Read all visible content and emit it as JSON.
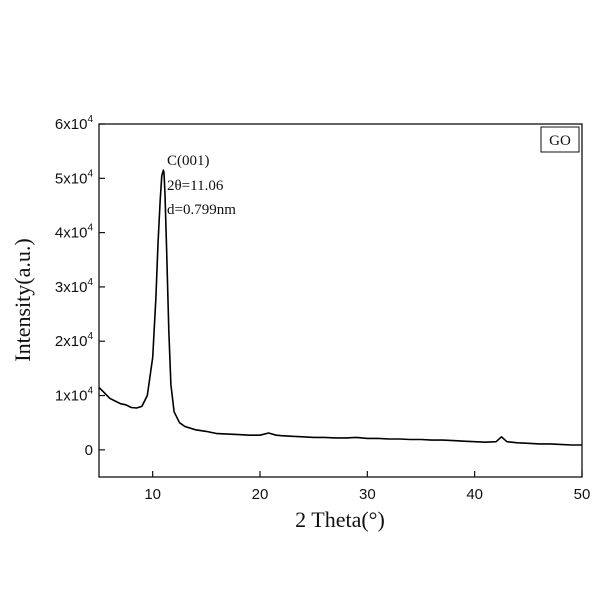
{
  "chart_data": {
    "type": "line",
    "xlabel": "2 Theta(°)",
    "ylabel": "Intensity(a.u.)",
    "xlim": [
      5,
      50
    ],
    "ylim": [
      -5000,
      60000
    ],
    "x_ticks": [
      10,
      20,
      30,
      40,
      50
    ],
    "y_ticks": [
      {
        "value": 0,
        "base": "0",
        "exp": ""
      },
      {
        "value": 10000,
        "base": "1x10",
        "exp": "4"
      },
      {
        "value": 20000,
        "base": "2x10",
        "exp": "4"
      },
      {
        "value": 30000,
        "base": "3x10",
        "exp": "4"
      },
      {
        "value": 40000,
        "base": "4x10",
        "exp": "4"
      },
      {
        "value": 50000,
        "base": "5x10",
        "exp": "4"
      },
      {
        "value": 60000,
        "base": "6x10",
        "exp": "4"
      }
    ],
    "legend": {
      "label": "GO",
      "position": "top-right"
    },
    "annotation": {
      "lines": [
        "C(001)",
        "2θ=11.06",
        "d=0.799nm"
      ],
      "anchor_x": 11.2,
      "anchor_y": 53000
    },
    "series": [
      {
        "color": "#000000",
        "x": [
          5.0,
          5.5,
          6.0,
          6.5,
          7.0,
          7.5,
          8.0,
          8.5,
          9.0,
          9.5,
          10.0,
          10.3,
          10.5,
          10.7,
          10.85,
          11.0,
          11.06,
          11.15,
          11.3,
          11.5,
          11.7,
          12.0,
          12.5,
          13.0,
          14.0,
          15.0,
          16.0,
          17.0,
          18.0,
          19.0,
          20.0,
          20.8,
          21.5,
          22.0,
          23.0,
          24.0,
          25.0,
          26.0,
          27.0,
          28.0,
          29.0,
          29.5,
          30.0,
          31.0,
          32.0,
          33.0,
          34.0,
          35.0,
          36.0,
          37.0,
          38.0,
          39.0,
          40.0,
          41.0,
          42.0,
          42.5,
          43.0,
          44.0,
          45.0,
          46.0,
          47.0,
          48.0,
          49.0,
          50.0
        ],
        "y": [
          11500,
          10500,
          9500,
          9000,
          8500,
          8300,
          7800,
          7700,
          8000,
          10000,
          17000,
          28000,
          38000,
          46000,
          50500,
          51500,
          51000,
          47000,
          37000,
          22000,
          12000,
          7000,
          5000,
          4300,
          3700,
          3400,
          3000,
          2900,
          2800,
          2700,
          2700,
          3100,
          2700,
          2600,
          2500,
          2400,
          2300,
          2300,
          2200,
          2200,
          2300,
          2200,
          2100,
          2100,
          2000,
          2000,
          1900,
          1900,
          1800,
          1800,
          1700,
          1600,
          1500,
          1400,
          1500,
          2400,
          1500,
          1300,
          1200,
          1100,
          1100,
          1000,
          900,
          900
        ]
      }
    ]
  }
}
